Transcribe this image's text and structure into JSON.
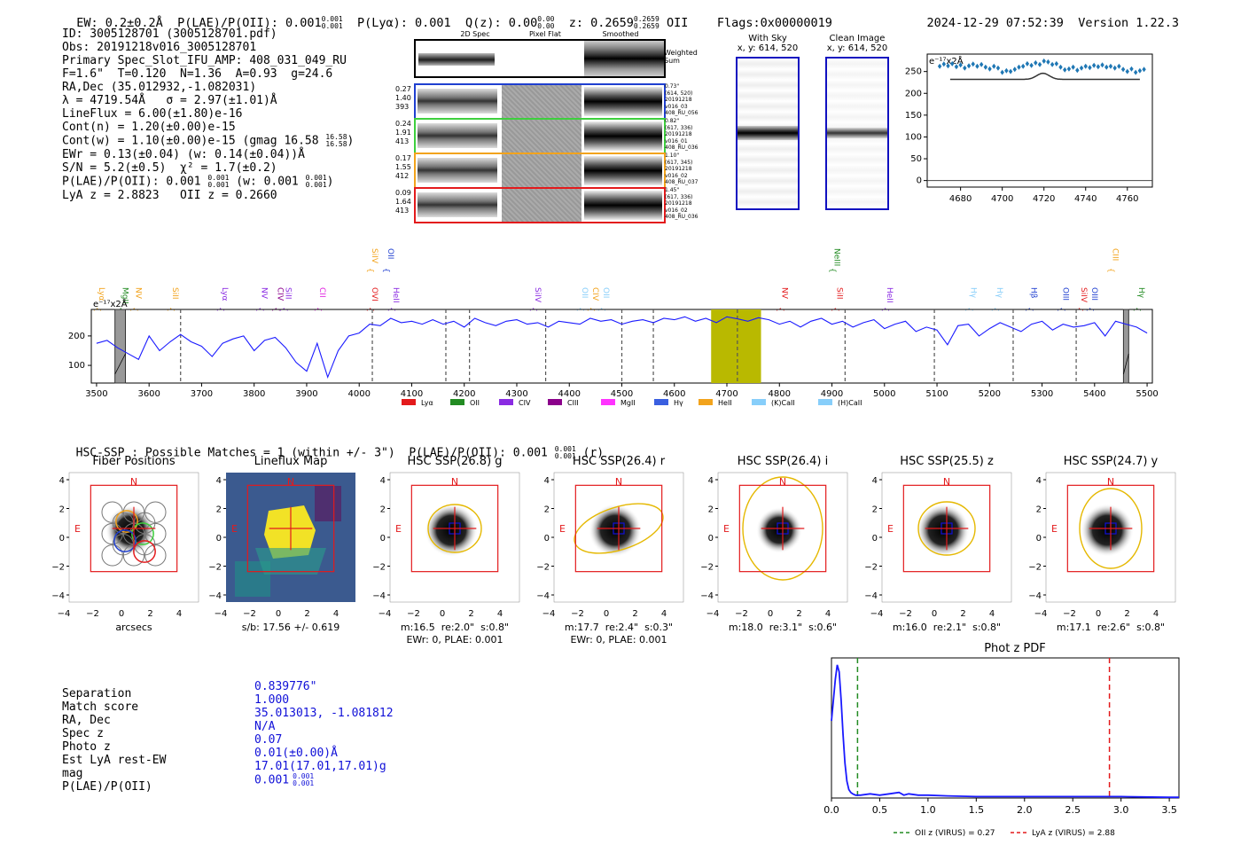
{
  "header": {
    "ew": "EW: 0.2±0.2Å",
    "plae_label": "P(LAE)/P(OII): 0.001",
    "plae_hi": "0.001",
    "plae_lo": "0.001",
    "plya": "P(Lyα): 0.001",
    "qz_label": "Q(z): 0.00",
    "qz_hi": "0.00",
    "qz_lo": "0.00",
    "z_label": "z: 0.2659",
    "z_hi": "0.2659",
    "z_lo": "0.2659",
    "z_line": "OII",
    "flags": "Flags:0x00000019",
    "datetime": "2024-12-29 07:52:39",
    "version": "Version 1.22.3"
  },
  "info": {
    "id": "ID: 3005128701 (3005128701.pdf)",
    "obs": "Obs: 20191218v016_3005128701",
    "primary": "Primary Spec_Slot_IFU_AMP: 408_031_049_RU",
    "params": "F=1.6\"  T=0.120  N=1.36  A=0.93  g=24.6",
    "radec": "RA,Dec (35.012932,-1.082031)",
    "lambda": "λ = 4719.54Å   σ = 2.97(±1.01)Å",
    "lineflux": "LineFlux = 6.00(±1.80)e-16",
    "contn": "Cont(n) = 1.20(±0.00)e-15",
    "contw_label": "Cont(w) = 1.10(±0.00)e-15 (gmag 16.58",
    "contw_hi": "16.58",
    "contw_lo": "16.58",
    "ewr": "EWr = 0.13(±0.04) (w: 0.14(±0.04))Å",
    "sn": "S/N = 5.2(±0.5)  χ² = 1.7(±0.2)",
    "plae_label": "P(LAE)/P(OII): 0.001",
    "plae_hi": "0.001",
    "plae_lo": "0.001",
    "plae_w_label": "(w: 0.001",
    "plae_w_hi": "0.001",
    "plae_w_lo": "0.001",
    "lya": "LyA z = 2.8823   OII z = 0.2660"
  },
  "cutouts": {
    "col_2d": "2D Spec",
    "col_flat": "Pixel Flat",
    "col_smooth": "Smoothed",
    "weighted": "Weighted Sum",
    "rows": [
      {
        "left": [
          "0.27",
          "1.40",
          "393"
        ],
        "right": [
          "0.73\"",
          "(614, 520)",
          "20191218",
          "v016_03",
          "408_RU_056"
        ],
        "color": "#1f3fd0"
      },
      {
        "left": [
          "0.24",
          "1.91",
          "413"
        ],
        "right": [
          "0.82\"",
          "(617, 336)",
          "20191218",
          "v016_01",
          "408_RU_036"
        ],
        "color": "#3ecf3e"
      },
      {
        "left": [
          "0.17",
          "1.55",
          "412"
        ],
        "right": [
          "1.10\"",
          "(617, 345)",
          "20191218",
          "v016_02",
          "408_RU_037"
        ],
        "color": "#f2a31c"
      },
      {
        "left": [
          "0.09",
          "1.64",
          "413"
        ],
        "right": [
          "1.45\"",
          "(617, 336)",
          "20191218",
          "v016_02",
          "408_RU_036"
        ],
        "color": "#e31a1c"
      }
    ],
    "with_sky": "With Sky",
    "with_sky_xy": "x, y: 614, 520",
    "clean": "Clean Image",
    "clean_xy": "x, y: 614, 520"
  },
  "chart_data": [
    {
      "type": "scatter",
      "name": "line-fit",
      "unit_label": "e⁻¹⁷x2Å",
      "x": [
        4670,
        4672,
        4674,
        4676,
        4678,
        4680,
        4682,
        4684,
        4686,
        4688,
        4690,
        4692,
        4694,
        4696,
        4698,
        4700,
        4702,
        4704,
        4706,
        4708,
        4710,
        4712,
        4714,
        4716,
        4718,
        4720,
        4722,
        4724,
        4726,
        4728,
        4730,
        4732,
        4734,
        4736,
        4738,
        4740,
        4742,
        4744,
        4746,
        4748,
        4750,
        4752,
        4754,
        4756,
        4758,
        4760,
        4762,
        4764,
        4766,
        4768
      ],
      "y": [
        262,
        267,
        263,
        268,
        261,
        265,
        258,
        263,
        267,
        262,
        266,
        260,
        256,
        262,
        258,
        248,
        252,
        250,
        255,
        260,
        262,
        268,
        264,
        270,
        266,
        274,
        272,
        266,
        268,
        260,
        254,
        256,
        260,
        253,
        258,
        262,
        259,
        264,
        261,
        265,
        260,
        262,
        258,
        262,
        255,
        250,
        256,
        248,
        252,
        255
      ],
      "fit": "gaussian",
      "fit_base": 232,
      "fit_peak": 246,
      "fit_center": 4719.54,
      "fit_sigma": 3.0,
      "xlim": [
        4664,
        4772
      ],
      "ylim": [
        -15,
        290
      ],
      "xticks": [
        4680,
        4700,
        4720,
        4740,
        4760
      ],
      "yticks": [
        0,
        50,
        100,
        150,
        200,
        250
      ]
    },
    {
      "type": "line",
      "name": "full-spectrum",
      "unit_label": "e⁻¹⁷x2Å",
      "xlim": [
        3490,
        5510
      ],
      "ylim": [
        40,
        290
      ],
      "xticks": [
        3500,
        3600,
        3700,
        3800,
        3900,
        4000,
        4100,
        4200,
        4300,
        4400,
        4500,
        4600,
        4700,
        4800,
        4900,
        5000,
        5100,
        5200,
        5300,
        5400,
        5500
      ],
      "yticks": [
        100,
        200
      ],
      "x": [
        3500,
        3520,
        3540,
        3560,
        3580,
        3600,
        3620,
        3640,
        3660,
        3680,
        3700,
        3720,
        3740,
        3760,
        3780,
        3800,
        3820,
        3840,
        3860,
        3880,
        3900,
        3920,
        3940,
        3960,
        3980,
        4000,
        4020,
        4040,
        4060,
        4080,
        4100,
        4120,
        4140,
        4160,
        4180,
        4200,
        4220,
        4240,
        4260,
        4280,
        4300,
        4320,
        4340,
        4360,
        4380,
        4400,
        4420,
        4440,
        4460,
        4480,
        4500,
        4520,
        4540,
        4560,
        4580,
        4600,
        4620,
        4640,
        4660,
        4680,
        4700,
        4720,
        4740,
        4760,
        4780,
        4800,
        4820,
        4840,
        4860,
        4880,
        4900,
        4920,
        4940,
        4960,
        4980,
        5000,
        5020,
        5040,
        5060,
        5080,
        5100,
        5120,
        5140,
        5160,
        5180,
        5200,
        5220,
        5240,
        5260,
        5280,
        5300,
        5320,
        5340,
        5360,
        5380,
        5400,
        5420,
        5440,
        5460,
        5480,
        5500
      ],
      "y": [
        175,
        185,
        160,
        140,
        120,
        200,
        150,
        180,
        205,
        180,
        165,
        130,
        175,
        190,
        200,
        150,
        185,
        195,
        160,
        110,
        80,
        175,
        60,
        150,
        200,
        210,
        240,
        235,
        260,
        245,
        250,
        240,
        255,
        240,
        250,
        230,
        260,
        245,
        235,
        250,
        255,
        240,
        245,
        230,
        250,
        245,
        240,
        260,
        250,
        255,
        240,
        250,
        255,
        245,
        260,
        255,
        265,
        250,
        260,
        245,
        265,
        258,
        250,
        262,
        255,
        240,
        250,
        230,
        250,
        260,
        240,
        250,
        230,
        245,
        255,
        225,
        240,
        250,
        215,
        230,
        220,
        170,
        235,
        240,
        200,
        225,
        245,
        230,
        215,
        240,
        250,
        220,
        240,
        230,
        235,
        245,
        200,
        250,
        240,
        230,
        210
      ],
      "shaded": {
        "from": 4670,
        "to": 4765,
        "color": "#b9b900"
      },
      "masked": [
        [
          3535,
          3555
        ],
        [
          5455,
          5465
        ]
      ],
      "dashed_x": [
        3660,
        4025,
        4165,
        4210,
        4355,
        4500,
        4560,
        4720,
        4925,
        5095,
        5245,
        5365
      ],
      "line_labels": [
        {
          "label": "Lyα",
          "x": 3500,
          "color": "#f2a31c",
          "row": 1
        },
        {
          "label": "MgII",
          "x": 3545,
          "color": "#228b22",
          "row": 1
        },
        {
          "label": "NV",
          "x": 3570,
          "color": "#f2a31c",
          "row": 1
        },
        {
          "label": "SiII",
          "x": 3640,
          "color": "#f2a31c",
          "row": 1
        },
        {
          "label": "Lyα",
          "x": 3735,
          "color": "#8a2be2",
          "row": 1
        },
        {
          "label": "NV",
          "x": 3810,
          "color": "#8a2be2",
          "row": 1
        },
        {
          "label": "CIV",
          "x": 3840,
          "color": "#8b008b",
          "row": 1
        },
        {
          "label": "SiII",
          "x": 3855,
          "color": "#8a2be2",
          "row": 1
        },
        {
          "label": "CII",
          "x": 3920,
          "color": "#e020e0",
          "row": 1
        },
        {
          "label": "SiIV",
          "x": 4020,
          "color": "#f2a31c",
          "row": 0
        },
        {
          "label": "OII",
          "x": 4050,
          "color": "#1f3fd0",
          "row": 0
        },
        {
          "label": "OVI",
          "x": 4020,
          "color": "#e31a1c",
          "row": 1
        },
        {
          "label": "HeII",
          "x": 4060,
          "color": "#8a2be2",
          "row": 1
        },
        {
          "label": "SiIV",
          "x": 4330,
          "color": "#8a2be2",
          "row": 1
        },
        {
          "label": "OII",
          "x": 4420,
          "color": "#87cefa",
          "row": 1
        },
        {
          "label": "CIV",
          "x": 4440,
          "color": "#f2a31c",
          "row": 1
        },
        {
          "label": "OII",
          "x": 4460,
          "color": "#87cefa",
          "row": 1
        },
        {
          "label": "NV",
          "x": 4800,
          "color": "#e31a1c",
          "row": 1
        },
        {
          "label": "NeIII",
          "x": 4900,
          "color": "#228b22",
          "row": 0
        },
        {
          "label": "SiII",
          "x": 4905,
          "color": "#e31a1c",
          "row": 1
        },
        {
          "label": "HeII",
          "x": 5000,
          "color": "#8a2be2",
          "row": 1
        },
        {
          "label": "Hγ",
          "x": 5160,
          "color": "#87cefa",
          "row": 1
        },
        {
          "label": "Hγ",
          "x": 5210,
          "color": "#87cefa",
          "row": 1
        },
        {
          "label": "Hβ",
          "x": 5275,
          "color": "#1f3fd0",
          "row": 1
        },
        {
          "label": "OIII",
          "x": 5335,
          "color": "#1f3fd0",
          "row": 1
        },
        {
          "label": "SiIV",
          "x": 5370,
          "color": "#e31a1c",
          "row": 1
        },
        {
          "label": "OIII",
          "x": 5390,
          "color": "#1f3fd0",
          "row": 1
        },
        {
          "label": "CIII",
          "x": 5430,
          "color": "#f2a31c",
          "row": 0
        },
        {
          "label": "Hγ",
          "x": 5480,
          "color": "#228b22",
          "row": 1
        }
      ],
      "legend": [
        {
          "label": "Lyα",
          "color": "#e31a1c"
        },
        {
          "label": "OII",
          "color": "#228b22"
        },
        {
          "label": "CIV",
          "color": "#8a2be2"
        },
        {
          "label": "CIII",
          "color": "#8b008b"
        },
        {
          "label": "MgII",
          "color": "#ff33ff"
        },
        {
          "label": "Hγ",
          "color": "#3a5fe0"
        },
        {
          "label": "HeII",
          "color": "#f2a31c"
        },
        {
          "label": "(K)CaII",
          "color": "#87cefa"
        },
        {
          "label": "(H)CaII",
          "color": "#87cefa"
        }
      ]
    },
    {
      "type": "line",
      "name": "phot-z-pdf",
      "title": "Phot z PDF",
      "xlim": [
        0,
        3.6
      ],
      "ylim": [
        0,
        1.0
      ],
      "xticks": [
        0.0,
        0.5,
        1.0,
        1.5,
        2.0,
        2.5,
        3.0,
        3.5
      ],
      "x": [
        0,
        0.02,
        0.04,
        0.06,
        0.08,
        0.1,
        0.12,
        0.14,
        0.16,
        0.18,
        0.2,
        0.22,
        0.25,
        0.3,
        0.4,
        0.5,
        0.6,
        0.7,
        0.75,
        0.8,
        0.9,
        1.0,
        1.2,
        1.5,
        2.0,
        2.5,
        3.0,
        3.5,
        3.6
      ],
      "y": [
        0.55,
        0.7,
        0.85,
        0.95,
        0.9,
        0.7,
        0.45,
        0.25,
        0.12,
        0.06,
        0.04,
        0.03,
        0.02,
        0.02,
        0.03,
        0.02,
        0.03,
        0.04,
        0.02,
        0.03,
        0.02,
        0.02,
        0.015,
        0.01,
        0.01,
        0.01,
        0.01,
        0.005,
        0.005
      ],
      "vlines": [
        {
          "x": 0.27,
          "color": "#228b22"
        },
        {
          "x": 2.88,
          "color": "#e31a1c"
        }
      ],
      "legend": [
        "OII z (VIRUS) = 0.27",
        "LyA z (VIRUS) = 2.88"
      ]
    }
  ],
  "hsc": {
    "summary_label": "HSC-SSP : Possible Matches = 1 (within +/- 3\")  P(LAE)/P(OII): 0.001",
    "summary_hi": "0.001",
    "summary_lo": "0.001",
    "summary_suffix": "(r)",
    "panels": [
      {
        "title": "Fiber Positions",
        "cap1": "arcsecs",
        "cap2": ""
      },
      {
        "title": "Lineflux Map",
        "cap1": "s/b: 17.56 +/- 0.619",
        "cap2": ""
      },
      {
        "title": "HSC SSP(26.8) g",
        "cap1": "m:16.5  re:2.0\"  s:0.8\"",
        "cap2": "EWr: 0, PLAE: 0.001"
      },
      {
        "title": "HSC SSP(26.4) r",
        "cap1": "m:17.7  re:2.4\"  s:0.3\"",
        "cap2": "EWr: 0, PLAE: 0.001"
      },
      {
        "title": "HSC SSP(26.4) i",
        "cap1": "m:18.0  re:3.1\"  s:0.6\"",
        "cap2": ""
      },
      {
        "title": "HSC SSP(25.5) z",
        "cap1": "m:16.0  re:2.1\"  s:0.8\"",
        "cap2": ""
      },
      {
        "title": "HSC SSP(24.7) y",
        "cap1": "m:17.1  re:2.6\"  s:0.8\"",
        "cap2": ""
      }
    ],
    "ticks": [
      "−4",
      "−2",
      "0",
      "2",
      "4"
    ],
    "yticks": [
      "4",
      "2",
      "0",
      "−2",
      "−4"
    ],
    "north": "N",
    "east": "E"
  },
  "match": {
    "labels": [
      "Separation",
      "Match score",
      "RA, Dec",
      "Spec z",
      "Photo z",
      "Est LyA rest-EW",
      "mag",
      "P(LAE)/P(OII)"
    ],
    "values": [
      "0.839776\"",
      "1.000",
      "35.013013, -1.081812",
      "N/A",
      "0.07",
      "0.01(±0.00)Å",
      "17.01(17.01,17.01)g",
      "0.001"
    ],
    "plae_hi": "0.001",
    "plae_lo": "0.001"
  }
}
